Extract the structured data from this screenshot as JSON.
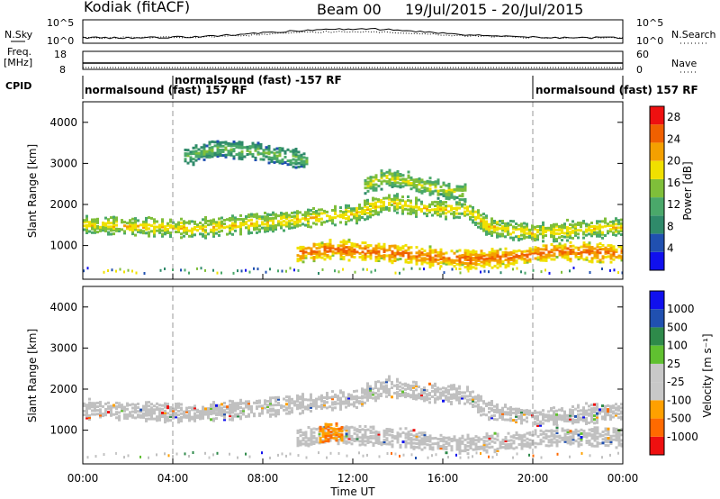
{
  "header": {
    "title": "Kodiak (fitACF)",
    "beam": "Beam 00",
    "date_range": "19/Jul/2015 - 20/Jul/2015"
  },
  "top_panels": {
    "nsky": "N.Sky",
    "nsearch": "N.Search",
    "noise_ticks": [
      "10^5",
      "10^0"
    ],
    "freq": "Freq.",
    "freq_unit": "[MHz]",
    "freq_ticks": [
      "18",
      "8"
    ],
    "nave": "Nave",
    "nave_ticks": [
      "60",
      "0"
    ],
    "cpid": "CPID",
    "cpid_segments": [
      {
        "text": "normalsound (fast) 157 RF"
      },
      {
        "text": "normalsound (fast) -157 RF"
      },
      {
        "text": "normalsound (fast) 157 RF"
      }
    ]
  },
  "colors": {
    "power": [
      "#1010ee",
      "#2050b0",
      "#2f8a6a",
      "#4aa86a",
      "#7fbf3a",
      "#f0e000",
      "#f4a000",
      "#f06000",
      "#ee1010"
    ],
    "velocity": [
      "#ee1010",
      "#ff6a00",
      "#ffa000",
      "#c8c8c8",
      "#c8c8c8",
      "#60c030",
      "#2e8a4a",
      "#2050b0",
      "#1010ee"
    ],
    "ground_scatter": "#c0c0c0"
  },
  "chart_data": [
    {
      "type": "heatmap",
      "panel": "power",
      "ylabel": "Slant Range [km]",
      "xlabel": "",
      "x_ticks": [
        "00:00",
        "04:00",
        "08:00",
        "12:00",
        "16:00",
        "20:00",
        "00:00"
      ],
      "x_range_hours": [
        0,
        24
      ],
      "y_ticks": [
        1000,
        2000,
        3000,
        4000
      ],
      "y_range_km": [
        180,
        4500
      ],
      "colorbar_label": "Power [dB]",
      "colorbar_ticks": [
        4,
        8,
        12,
        16,
        20,
        24,
        28
      ],
      "colorbar_range": [
        0,
        30
      ],
      "bands": [
        {
          "x": [
            0,
            5,
            9,
            12,
            13.5,
            15,
            17,
            18,
            20,
            24
          ],
          "y": [
            1550,
            1450,
            1650,
            1800,
            2100,
            1950,
            1900,
            1500,
            1350,
            1500
          ],
          "value": 14
        },
        {
          "x": [
            9.5,
            11,
            12.5,
            14,
            15.5,
            17,
            19,
            21,
            24
          ],
          "y": [
            850,
            950,
            900,
            850,
            750,
            700,
            750,
            900,
            850
          ],
          "value": 20
        },
        {
          "x": [
            4.5,
            6,
            8,
            10
          ],
          "y": [
            3200,
            3400,
            3300,
            3100
          ],
          "value": 8
        },
        {
          "x": [
            12.5,
            13.5,
            15,
            17
          ],
          "y": [
            2500,
            2700,
            2500,
            2300
          ],
          "value": 12
        }
      ]
    },
    {
      "type": "heatmap",
      "panel": "velocity",
      "ylabel": "Slant Range [km]",
      "xlabel": "Time UT",
      "x_ticks": [
        "00:00",
        "04:00",
        "08:00",
        "12:00",
        "16:00",
        "20:00",
        "00:00"
      ],
      "x_range_hours": [
        0,
        24
      ],
      "y_ticks": [
        1000,
        2000,
        3000,
        4000
      ],
      "y_range_km": [
        180,
        4500
      ],
      "colorbar_label": "Velocity [m s^-1]",
      "colorbar_ticks": [
        1000,
        500,
        100,
        25,
        -25,
        -100,
        -500,
        -1000
      ],
      "bands": [
        {
          "x": [
            0,
            5,
            9,
            12,
            13.5,
            15,
            17,
            18,
            20,
            24
          ],
          "y": [
            1550,
            1450,
            1650,
            1800,
            2100,
            1950,
            1900,
            1500,
            1350,
            1500
          ],
          "value": 0
        },
        {
          "x": [
            9.5,
            11,
            12.5,
            14,
            15.5,
            17,
            19,
            21,
            24
          ],
          "y": [
            850,
            950,
            900,
            850,
            750,
            700,
            750,
            900,
            850
          ],
          "value": 0
        },
        {
          "x": [
            10.5,
            11,
            11.5
          ],
          "y": [
            950,
            1000,
            950
          ],
          "value": -400
        }
      ]
    }
  ]
}
